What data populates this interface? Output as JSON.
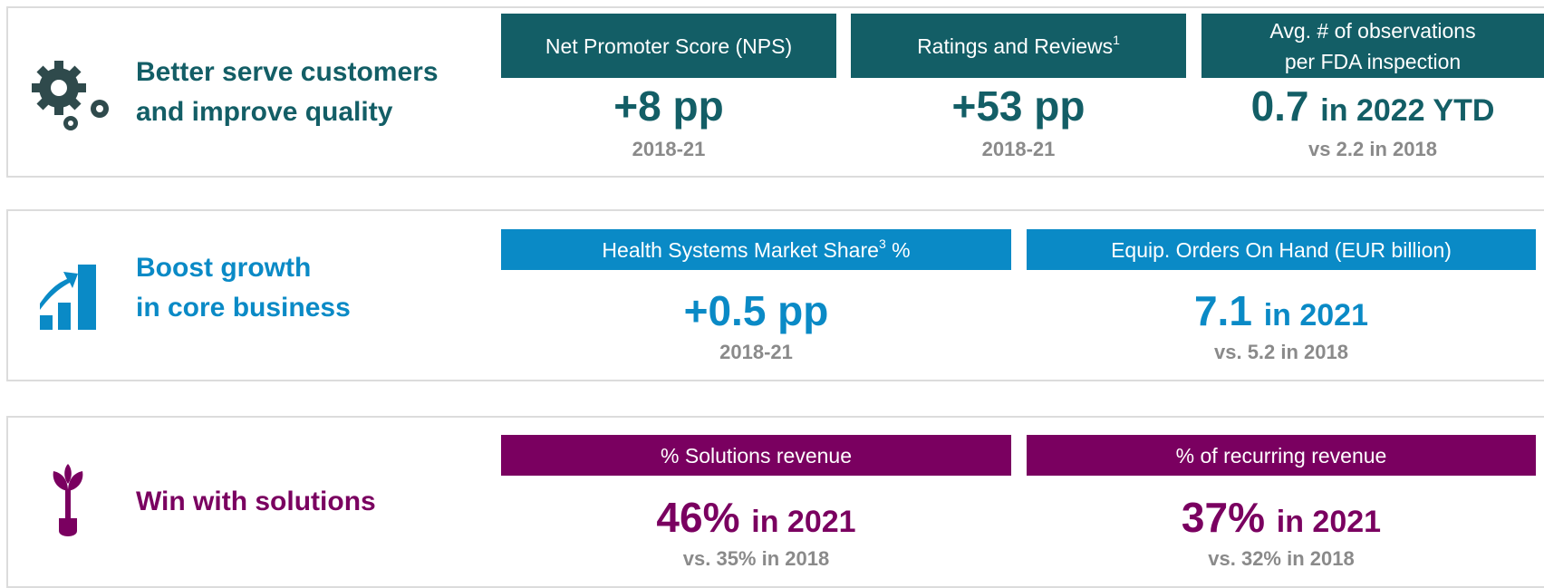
{
  "rows": [
    {
      "title_lines": [
        "Better serve customers",
        "and improve quality"
      ],
      "metrics": [
        {
          "header_lines": [
            "Net Promoter Score (NPS)"
          ],
          "value": "+8 pp",
          "note": "2018-21"
        },
        {
          "header_lines": [
            "Ratings and Reviews"
          ],
          "header_sup": "1",
          "value": "+53 pp",
          "note": "2018-21"
        },
        {
          "header_lines": [
            "Avg. # of observations",
            "per FDA inspection"
          ],
          "value": "0.7",
          "value_suffix": "in 2022 YTD",
          "note": "vs 2.2 in 2018"
        }
      ]
    },
    {
      "title_lines": [
        "Boost growth",
        "in core business"
      ],
      "metrics": [
        {
          "header_lines": [
            "Health Systems Market Share"
          ],
          "header_sup": "3",
          "header_after": "%",
          "value": "+0.5 pp",
          "note": "2018-21"
        },
        {
          "header_lines": [
            "Equip. Orders On Hand (EUR billion)"
          ],
          "value": "7.1",
          "value_suffix": "in 2021",
          "note": "vs. 5.2 in 2018"
        }
      ]
    },
    {
      "title_lines": [
        "Win with solutions"
      ],
      "metrics": [
        {
          "header_lines": [
            "% Solutions revenue"
          ],
          "value": "46%",
          "value_suffix": "in 2021",
          "note": "vs. 35% in 2018"
        },
        {
          "header_lines": [
            "% of recurring revenue"
          ],
          "value": "37%",
          "value_suffix": "in 2021",
          "note": "vs. 32% in 2018"
        }
      ]
    }
  ]
}
